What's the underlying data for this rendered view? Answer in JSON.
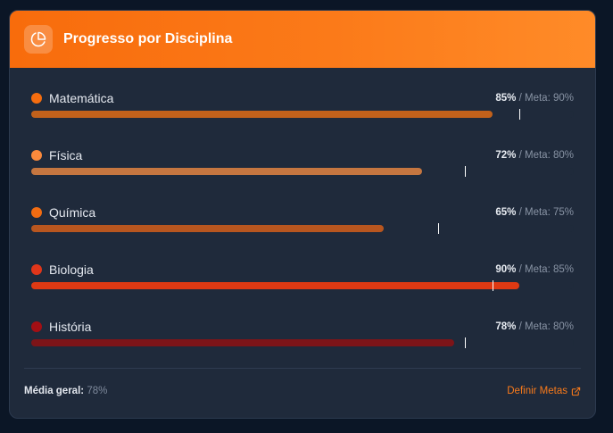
{
  "header": {
    "title": "Progresso por Disciplina",
    "icon": "pie-chart-icon"
  },
  "subjects": [
    {
      "name": "Matemática",
      "percent_label": "85%",
      "goal_label": "/ Meta: 90%",
      "progress": 85,
      "goal": 90,
      "color": "#f56d0f",
      "bar_color": "#c2611b"
    },
    {
      "name": "Física",
      "percent_label": "72%",
      "goal_label": "/ Meta: 80%",
      "progress": 72,
      "goal": 80,
      "color": "#fb8a3c",
      "bar_color": "#c57640"
    },
    {
      "name": "Química",
      "percent_label": "65%",
      "goal_label": "/ Meta: 75%",
      "progress": 65,
      "goal": 75,
      "color": "#f26c12",
      "bar_color": "#b8561f"
    },
    {
      "name": "Biologia",
      "percent_label": "90%",
      "goal_label": "/ Meta: 85%",
      "progress": 90,
      "goal": 85,
      "color": "#e0361a",
      "bar_color": "#de3913"
    },
    {
      "name": "História",
      "percent_label": "78%",
      "goal_label": "/ Meta: 80%",
      "progress": 78,
      "goal": 80,
      "color": "#a30f14",
      "bar_color": "#7d1418"
    }
  ],
  "footer": {
    "average_label": "Média geral:",
    "average_value": "78%",
    "link_label": "Definir Metas",
    "link_icon": "external-link-icon"
  }
}
